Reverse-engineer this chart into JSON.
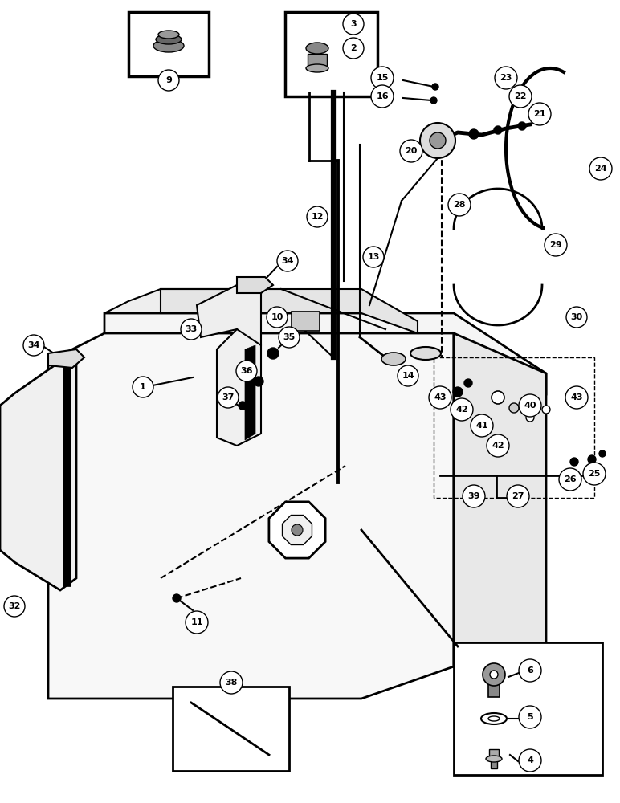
{
  "fig_width": 7.72,
  "fig_height": 10.0,
  "bg": "#ffffff"
}
